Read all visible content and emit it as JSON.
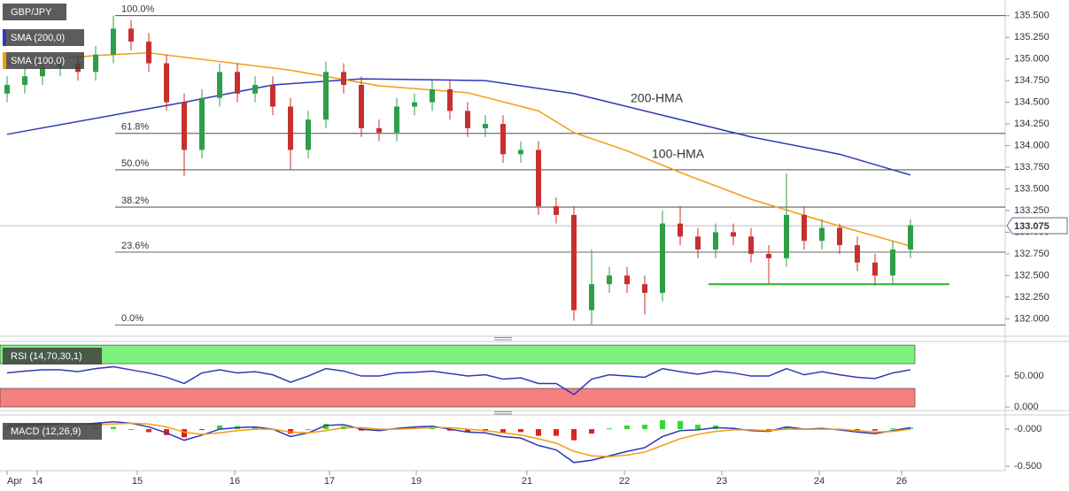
{
  "chart_data": [
    {
      "type": "candlestick",
      "title": "GBP/JPY",
      "xlim": [
        -0.4,
        56.35
      ],
      "ylim": [
        131.82,
        135.66
      ],
      "yticks": [
        {
          "value": 132,
          "label": "132.000"
        },
        {
          "value": 132.25,
          "label": "132.250"
        },
        {
          "value": 132.5,
          "label": "132.500"
        },
        {
          "value": 132.75,
          "label": "132.750"
        },
        {
          "value": 133,
          "label": "133.000"
        },
        {
          "value": 133.25,
          "label": "133.250"
        },
        {
          "value": 133.5,
          "label": "133.500"
        },
        {
          "value": 133.75,
          "label": "133.750"
        },
        {
          "value": 134,
          "label": "134.000"
        },
        {
          "value": 134.25,
          "label": "134.250"
        },
        {
          "value": 134.5,
          "label": "134.500"
        },
        {
          "value": 134.75,
          "label": "134.750"
        },
        {
          "value": 135,
          "label": "135.000"
        },
        {
          "value": 135.25,
          "label": "135.250"
        },
        {
          "value": 135.5,
          "label": "135.500"
        }
      ],
      "up_color": "#2e9e48",
      "down_color": "#c7302f",
      "open": [
        134.6,
        134.7,
        134.8,
        134.9,
        134.95,
        134.85,
        135.05,
        135.35,
        135.2,
        134.95,
        134.5,
        133.95,
        134.55,
        134.85,
        134.6,
        134.7,
        134.45,
        133.95,
        134.3,
        134.85,
        134.7,
        134.2,
        134.15,
        134.45,
        134.5,
        134.65,
        134.4,
        134.2,
        134.25,
        133.9,
        133.95,
        133.3,
        133.2,
        132.1,
        132.4,
        132.5,
        132.4,
        132.3,
        133.1,
        132.95,
        132.8,
        133.0,
        132.95,
        132.75,
        132.7,
        133.2,
        132.9,
        133.05,
        132.85,
        132.65,
        132.5,
        132.8
      ],
      "high": [
        134.8,
        134.9,
        135.0,
        135.05,
        135.05,
        135.15,
        135.5,
        135.45,
        135.3,
        135.05,
        134.6,
        134.65,
        134.95,
        134.95,
        134.8,
        134.8,
        134.55,
        134.4,
        134.97,
        134.95,
        134.8,
        134.3,
        134.55,
        134.6,
        134.75,
        134.75,
        134.5,
        134.35,
        134.35,
        134.05,
        134.05,
        133.4,
        133.3,
        132.8,
        132.6,
        132.6,
        132.5,
        133.25,
        133.3,
        133.05,
        133.1,
        133.1,
        133.05,
        132.85,
        133.68,
        133.3,
        133.15,
        133.1,
        132.95,
        132.75,
        132.9,
        133.15
      ],
      "low": [
        134.5,
        134.6,
        134.7,
        134.8,
        134.75,
        134.75,
        134.95,
        135.1,
        134.85,
        134.4,
        133.65,
        133.85,
        134.45,
        134.5,
        134.5,
        134.35,
        133.72,
        133.85,
        134.2,
        134.6,
        134.1,
        134.05,
        134.05,
        134.35,
        134.4,
        134.3,
        134.1,
        134.1,
        133.8,
        133.8,
        133.2,
        133.1,
        131.98,
        131.93,
        132.3,
        132.3,
        132.05,
        132.2,
        132.85,
        132.7,
        132.7,
        132.85,
        132.65,
        132.4,
        132.6,
        132.8,
        132.8,
        132.75,
        132.55,
        132.38,
        132.4,
        132.7
      ],
      "close": [
        134.7,
        134.8,
        134.9,
        134.95,
        134.85,
        135.05,
        135.35,
        135.2,
        134.95,
        134.5,
        133.95,
        134.55,
        134.85,
        134.6,
        134.7,
        134.45,
        133.95,
        134.3,
        134.85,
        134.7,
        134.2,
        134.15,
        134.45,
        134.5,
        134.65,
        134.4,
        134.2,
        134.25,
        133.9,
        133.95,
        133.3,
        133.2,
        132.1,
        132.4,
        132.5,
        132.4,
        132.3,
        133.1,
        132.95,
        132.8,
        133.0,
        132.95,
        132.75,
        132.7,
        133.2,
        132.9,
        133.05,
        132.85,
        132.65,
        132.5,
        132.8,
        133.08
      ],
      "series": [
        {
          "name": "SMA (200,0)",
          "color": "#2d38b8",
          "x": [
            0,
            10,
            15,
            20,
            27,
            32,
            37,
            42,
            47,
            51
          ],
          "values": [
            134.13,
            134.5,
            134.7,
            134.77,
            134.75,
            134.6,
            134.35,
            134.1,
            133.9,
            133.66
          ]
        },
        {
          "name": "SMA (100,0)",
          "color": "#f39c12",
          "x": [
            0,
            5,
            8,
            12,
            16,
            21,
            26,
            30,
            32,
            35,
            38,
            42,
            47,
            51
          ],
          "values": [
            134.95,
            135.04,
            135.07,
            134.97,
            134.87,
            134.69,
            134.61,
            134.4,
            134.15,
            133.94,
            133.69,
            133.38,
            133.07,
            132.84
          ]
        }
      ],
      "fib_levels": [
        {
          "label": "100.0%",
          "price": 135.5
        },
        {
          "label": "61.8%",
          "price": 134.14
        },
        {
          "label": "50.0%",
          "price": 133.72
        },
        {
          "label": "38.2%",
          "price": 133.29
        },
        {
          "label": "23.6%",
          "price": 132.77
        },
        {
          "label": "0.0%",
          "price": 131.93
        }
      ],
      "last_price": 133.075,
      "support": {
        "price": 132.4,
        "x": [
          39.6,
          53.2
        ],
        "color": "#22b522"
      },
      "annotations": [
        {
          "text": "200-HMA",
          "color": "#5b5fc7"
        },
        {
          "text": "100-HMA",
          "color": "#22a522"
        }
      ]
    },
    {
      "type": "line",
      "xlim": [
        -0.4,
        56.35
      ],
      "ylim": [
        -10,
        103
      ],
      "yticks": [
        {
          "value": 50,
          "label": "50.000"
        },
        {
          "value": 0,
          "label": "0.000"
        }
      ],
      "overbought": [
        70,
        100
      ],
      "overbought_color": "#7ef07e",
      "oversold": [
        0,
        30
      ],
      "oversold_color": "#f58080",
      "series": [
        {
          "name": "RSI (14,70,30,1)",
          "color": "#2d38b8",
          "values": [
            55,
            58,
            60,
            60,
            57,
            62,
            65,
            60,
            55,
            48,
            38,
            55,
            60,
            55,
            57,
            52,
            40,
            50,
            62,
            58,
            50,
            50,
            55,
            56,
            58,
            54,
            50,
            52,
            45,
            47,
            38,
            38,
            20,
            45,
            52,
            50,
            48,
            62,
            57,
            53,
            58,
            55,
            50,
            50,
            62,
            52,
            57,
            52,
            48,
            46,
            55,
            60
          ]
        }
      ]
    },
    {
      "type": "macd",
      "xlim": [
        -0.4,
        56.35
      ],
      "ylim": [
        -0.56,
        0.18
      ],
      "yticks": [
        {
          "value": 0,
          "label": "-0.000"
        },
        {
          "value": -0.5,
          "label": "-0.500"
        }
      ],
      "xticks": [
        {
          "value": 0,
          "label": "Apr"
        },
        {
          "value": 1.7,
          "label": "14"
        },
        {
          "value": 7.35,
          "label": "15"
        },
        {
          "value": 12.85,
          "label": "16"
        },
        {
          "value": 18.2,
          "label": "17"
        },
        {
          "value": 23.1,
          "label": "19"
        },
        {
          "value": 29.35,
          "label": "21"
        },
        {
          "value": 34.85,
          "label": "22"
        },
        {
          "value": 40.35,
          "label": "23"
        },
        {
          "value": 45.85,
          "label": "24"
        },
        {
          "value": 50.5,
          "label": "26"
        }
      ],
      "series": [
        {
          "name": "MACD (12,26,9)",
          "color": "#2d38b8",
          "values": [
            0.05,
            0.06,
            0.07,
            0.07,
            0.06,
            0.08,
            0.1,
            0.08,
            0.03,
            -0.05,
            -0.15,
            -0.08,
            0.0,
            0.02,
            0.03,
            0.0,
            -0.1,
            -0.05,
            0.05,
            0.06,
            0.0,
            -0.02,
            0.01,
            0.03,
            0.04,
            0.0,
            -0.04,
            -0.05,
            -0.1,
            -0.12,
            -0.22,
            -0.28,
            -0.45,
            -0.42,
            -0.36,
            -0.3,
            -0.25,
            -0.1,
            -0.02,
            -0.01,
            0.02,
            0.01,
            -0.02,
            -0.03,
            0.03,
            0.0,
            0.01,
            -0.01,
            -0.04,
            -0.06,
            -0.02,
            0.02
          ]
        },
        {
          "color": "#f39c12",
          "values": [
            0.03,
            0.04,
            0.05,
            0.06,
            0.06,
            0.06,
            0.07,
            0.08,
            0.07,
            0.03,
            -0.04,
            -0.07,
            -0.05,
            -0.02,
            0.0,
            0.0,
            -0.04,
            -0.05,
            -0.02,
            0.02,
            0.02,
            0.0,
            0.0,
            0.01,
            0.02,
            0.02,
            0.0,
            -0.02,
            -0.05,
            -0.08,
            -0.13,
            -0.19,
            -0.3,
            -0.36,
            -0.37,
            -0.35,
            -0.31,
            -0.22,
            -0.13,
            -0.07,
            -0.03,
            -0.01,
            -0.01,
            -0.02,
            0.0,
            0.0,
            0.0,
            0.0,
            -0.02,
            -0.04,
            -0.03,
            0.0
          ]
        }
      ],
      "histogram": {
        "up_color": "#34d834",
        "down_color": "#e02020",
        "values": [
          0.02,
          0.02,
          0.02,
          0.01,
          0,
          0.02,
          0.03,
          0,
          -0.04,
          -0.08,
          -0.11,
          -0.01,
          0.05,
          0.04,
          0.03,
          0,
          -0.06,
          0,
          0.07,
          0.04,
          -0.02,
          -0.02,
          0.01,
          0.02,
          0.02,
          -0.02,
          -0.04,
          -0.03,
          -0.05,
          -0.04,
          -0.09,
          -0.09,
          -0.15,
          -0.06,
          0.01,
          0.05,
          0.06,
          0.12,
          0.11,
          0.06,
          0.05,
          0.02,
          -0.01,
          -0.01,
          0.03,
          0,
          0.01,
          -0.01,
          -0.02,
          -0.02,
          0.01,
          0.02
        ]
      }
    }
  ]
}
